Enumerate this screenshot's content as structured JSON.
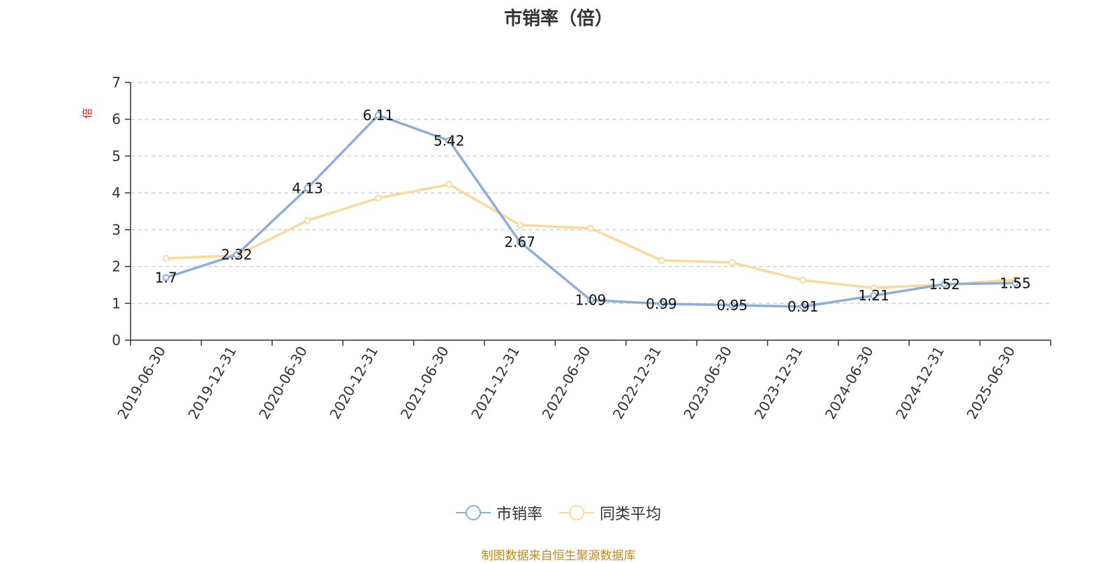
{
  "chart_data": {
    "type": "line",
    "title": "市销率（倍）",
    "ylabel": "倍",
    "xlabel": "",
    "ylim": [
      0,
      7
    ],
    "yticks": [
      0,
      1,
      2,
      3,
      4,
      5,
      6,
      7
    ],
    "grid": true,
    "legend_position": "bottom",
    "categories": [
      "2019-06-30",
      "2019-12-31",
      "2020-06-30",
      "2020-12-31",
      "2021-06-30",
      "2021-12-31",
      "2022-06-30",
      "2022-12-31",
      "2023-06-30",
      "2023-12-31",
      "2024-06-30",
      "2024-12-31",
      "2025-06-30"
    ],
    "series": [
      {
        "name": "市销率",
        "color": "#8eaed8",
        "values": [
          1.7,
          2.32,
          4.13,
          6.11,
          5.42,
          2.67,
          1.09,
          0.99,
          0.95,
          0.91,
          1.21,
          1.52,
          1.55
        ],
        "labels": [
          "1.7",
          "2.32",
          "4.13",
          "6.11",
          "5.42",
          "2.67",
          "1.09",
          "0.99",
          "0.95",
          "0.91",
          "1.21",
          "1.52",
          "1.55"
        ]
      },
      {
        "name": "同类平均",
        "color": "#fad99a",
        "values": [
          2.22,
          2.3,
          3.25,
          3.86,
          4.23,
          3.13,
          3.04,
          2.17,
          2.11,
          1.63,
          1.42,
          1.51,
          1.64
        ]
      }
    ]
  },
  "source_text": "制图数据来自恒生聚源数据库"
}
